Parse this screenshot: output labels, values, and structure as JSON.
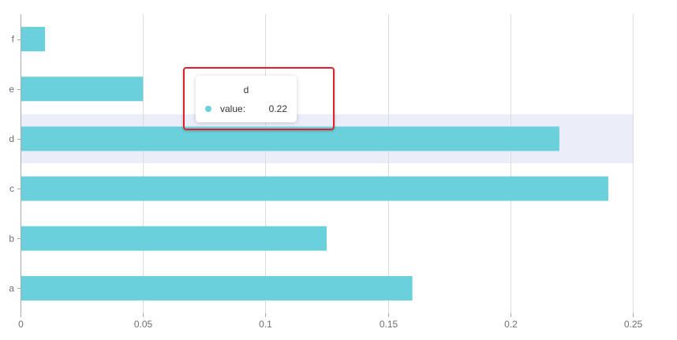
{
  "chart_data": {
    "type": "bar",
    "orientation": "horizontal",
    "categories": [
      "a",
      "b",
      "c",
      "d",
      "e",
      "f"
    ],
    "values": [
      0.16,
      0.125,
      0.24,
      0.22,
      0.05,
      0.01
    ],
    "xlim": [
      0,
      0.25
    ],
    "x_ticks": [
      "0",
      "0.05",
      "0.1",
      "0.15",
      "0.2",
      "0.25"
    ],
    "x_tick_values": [
      0,
      0.05,
      0.1,
      0.15,
      0.2,
      0.25
    ],
    "grid": "vertical",
    "highlighted_category": "d",
    "colors": {
      "bar": "#6ad0dc",
      "highlight_band": "#ebeef9",
      "grid": "#dcdcdc",
      "axis": "#a8a8a8",
      "annotation_frame": "#e0202a"
    }
  },
  "tooltip": {
    "title": "d",
    "series_label": "value:",
    "value": "0.22",
    "marker_color": "#6ad0dc"
  }
}
